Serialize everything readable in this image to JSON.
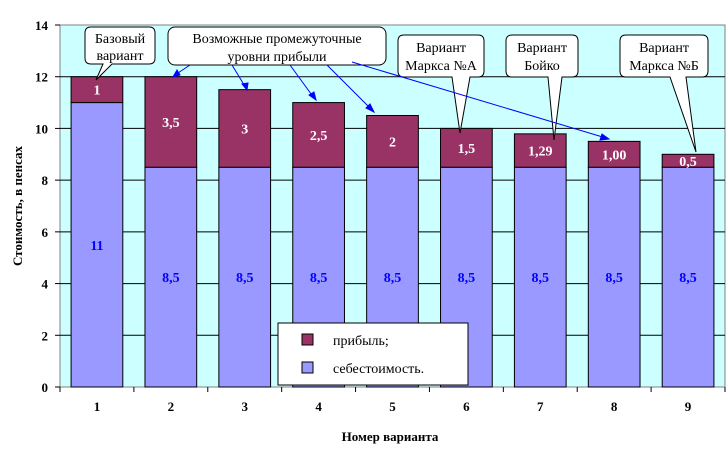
{
  "chart_data": {
    "type": "bar",
    "stacked": true,
    "categories": [
      "1",
      "2",
      "3",
      "4",
      "5",
      "6",
      "7",
      "8",
      "9"
    ],
    "series": [
      {
        "name": "себестоимость.",
        "color": "#9999FF",
        "label_color": "#0000FF",
        "values": [
          11,
          8.5,
          8.5,
          8.5,
          8.5,
          8.5,
          8.5,
          8.5,
          8.5
        ],
        "labels": [
          "11",
          "8,5",
          "8,5",
          "8,5",
          "8,5",
          "8,5",
          "8,5",
          "8,5",
          "8,5"
        ]
      },
      {
        "name": "прибыль;",
        "color": "#993366",
        "label_color": "#FFFFFF",
        "values": [
          1,
          3.5,
          3,
          2.5,
          2,
          1.5,
          1.29,
          1.0,
          0.5
        ],
        "labels": [
          "1",
          "3,5",
          "3",
          "2,5",
          "2",
          "1,5",
          "1,29",
          "1,00",
          "0,5"
        ]
      }
    ],
    "title": "",
    "xlabel": "Номер варианта",
    "ylabel": "Стоимость, в пенсах",
    "ylim": [
      0,
      14
    ],
    "yticks": [
      "0",
      "2",
      "4",
      "6",
      "8",
      "10",
      "12",
      "14"
    ],
    "grid": true,
    "plot_background": "#CCFFFF",
    "legend_location": "bottom-center",
    "annotations": [
      {
        "lines": [
          "Базовый",
          "вариант"
        ],
        "target_category": "1"
      },
      {
        "lines": [
          "Возможные промежуточные",
          "уровни прибыли"
        ],
        "target_categories": [
          "2",
          "3",
          "4",
          "5",
          "8"
        ]
      },
      {
        "lines": [
          "Вариант",
          "Маркса №А"
        ],
        "target_category": "6"
      },
      {
        "lines": [
          "Вариант",
          "Бойко"
        ],
        "target_category": "7"
      },
      {
        "lines": [
          "Вариант",
          "Маркса №Б"
        ],
        "target_category": "9"
      }
    ]
  }
}
